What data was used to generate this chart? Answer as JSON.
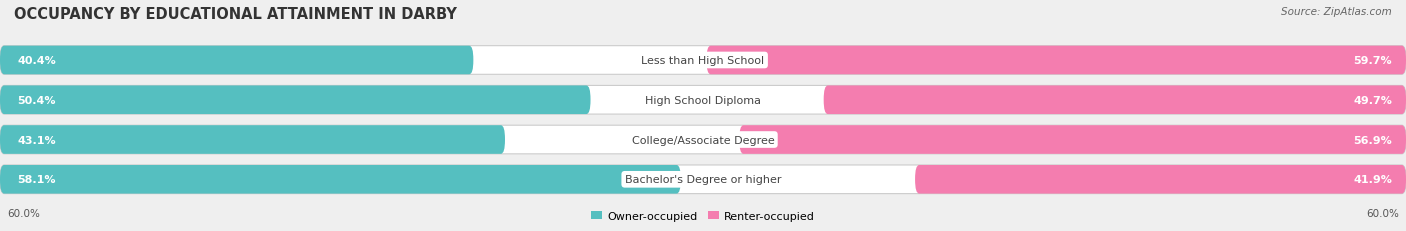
{
  "title": "OCCUPANCY BY EDUCATIONAL ATTAINMENT IN DARBY",
  "source": "Source: ZipAtlas.com",
  "categories": [
    "Less than High School",
    "High School Diploma",
    "College/Associate Degree",
    "Bachelor's Degree or higher"
  ],
  "owner_values": [
    40.4,
    50.4,
    43.1,
    58.1
  ],
  "renter_values": [
    59.7,
    49.7,
    56.9,
    41.9
  ],
  "owner_color": "#55bfc0",
  "renter_color": "#f47daf",
  "background_color": "#efefef",
  "bar_background": "#ffffff",
  "title_fontsize": 10.5,
  "source_fontsize": 7.5,
  "label_fontsize": 8.0,
  "value_fontsize": 8.0,
  "axis_label": "60.0%",
  "max_val": 60.0
}
